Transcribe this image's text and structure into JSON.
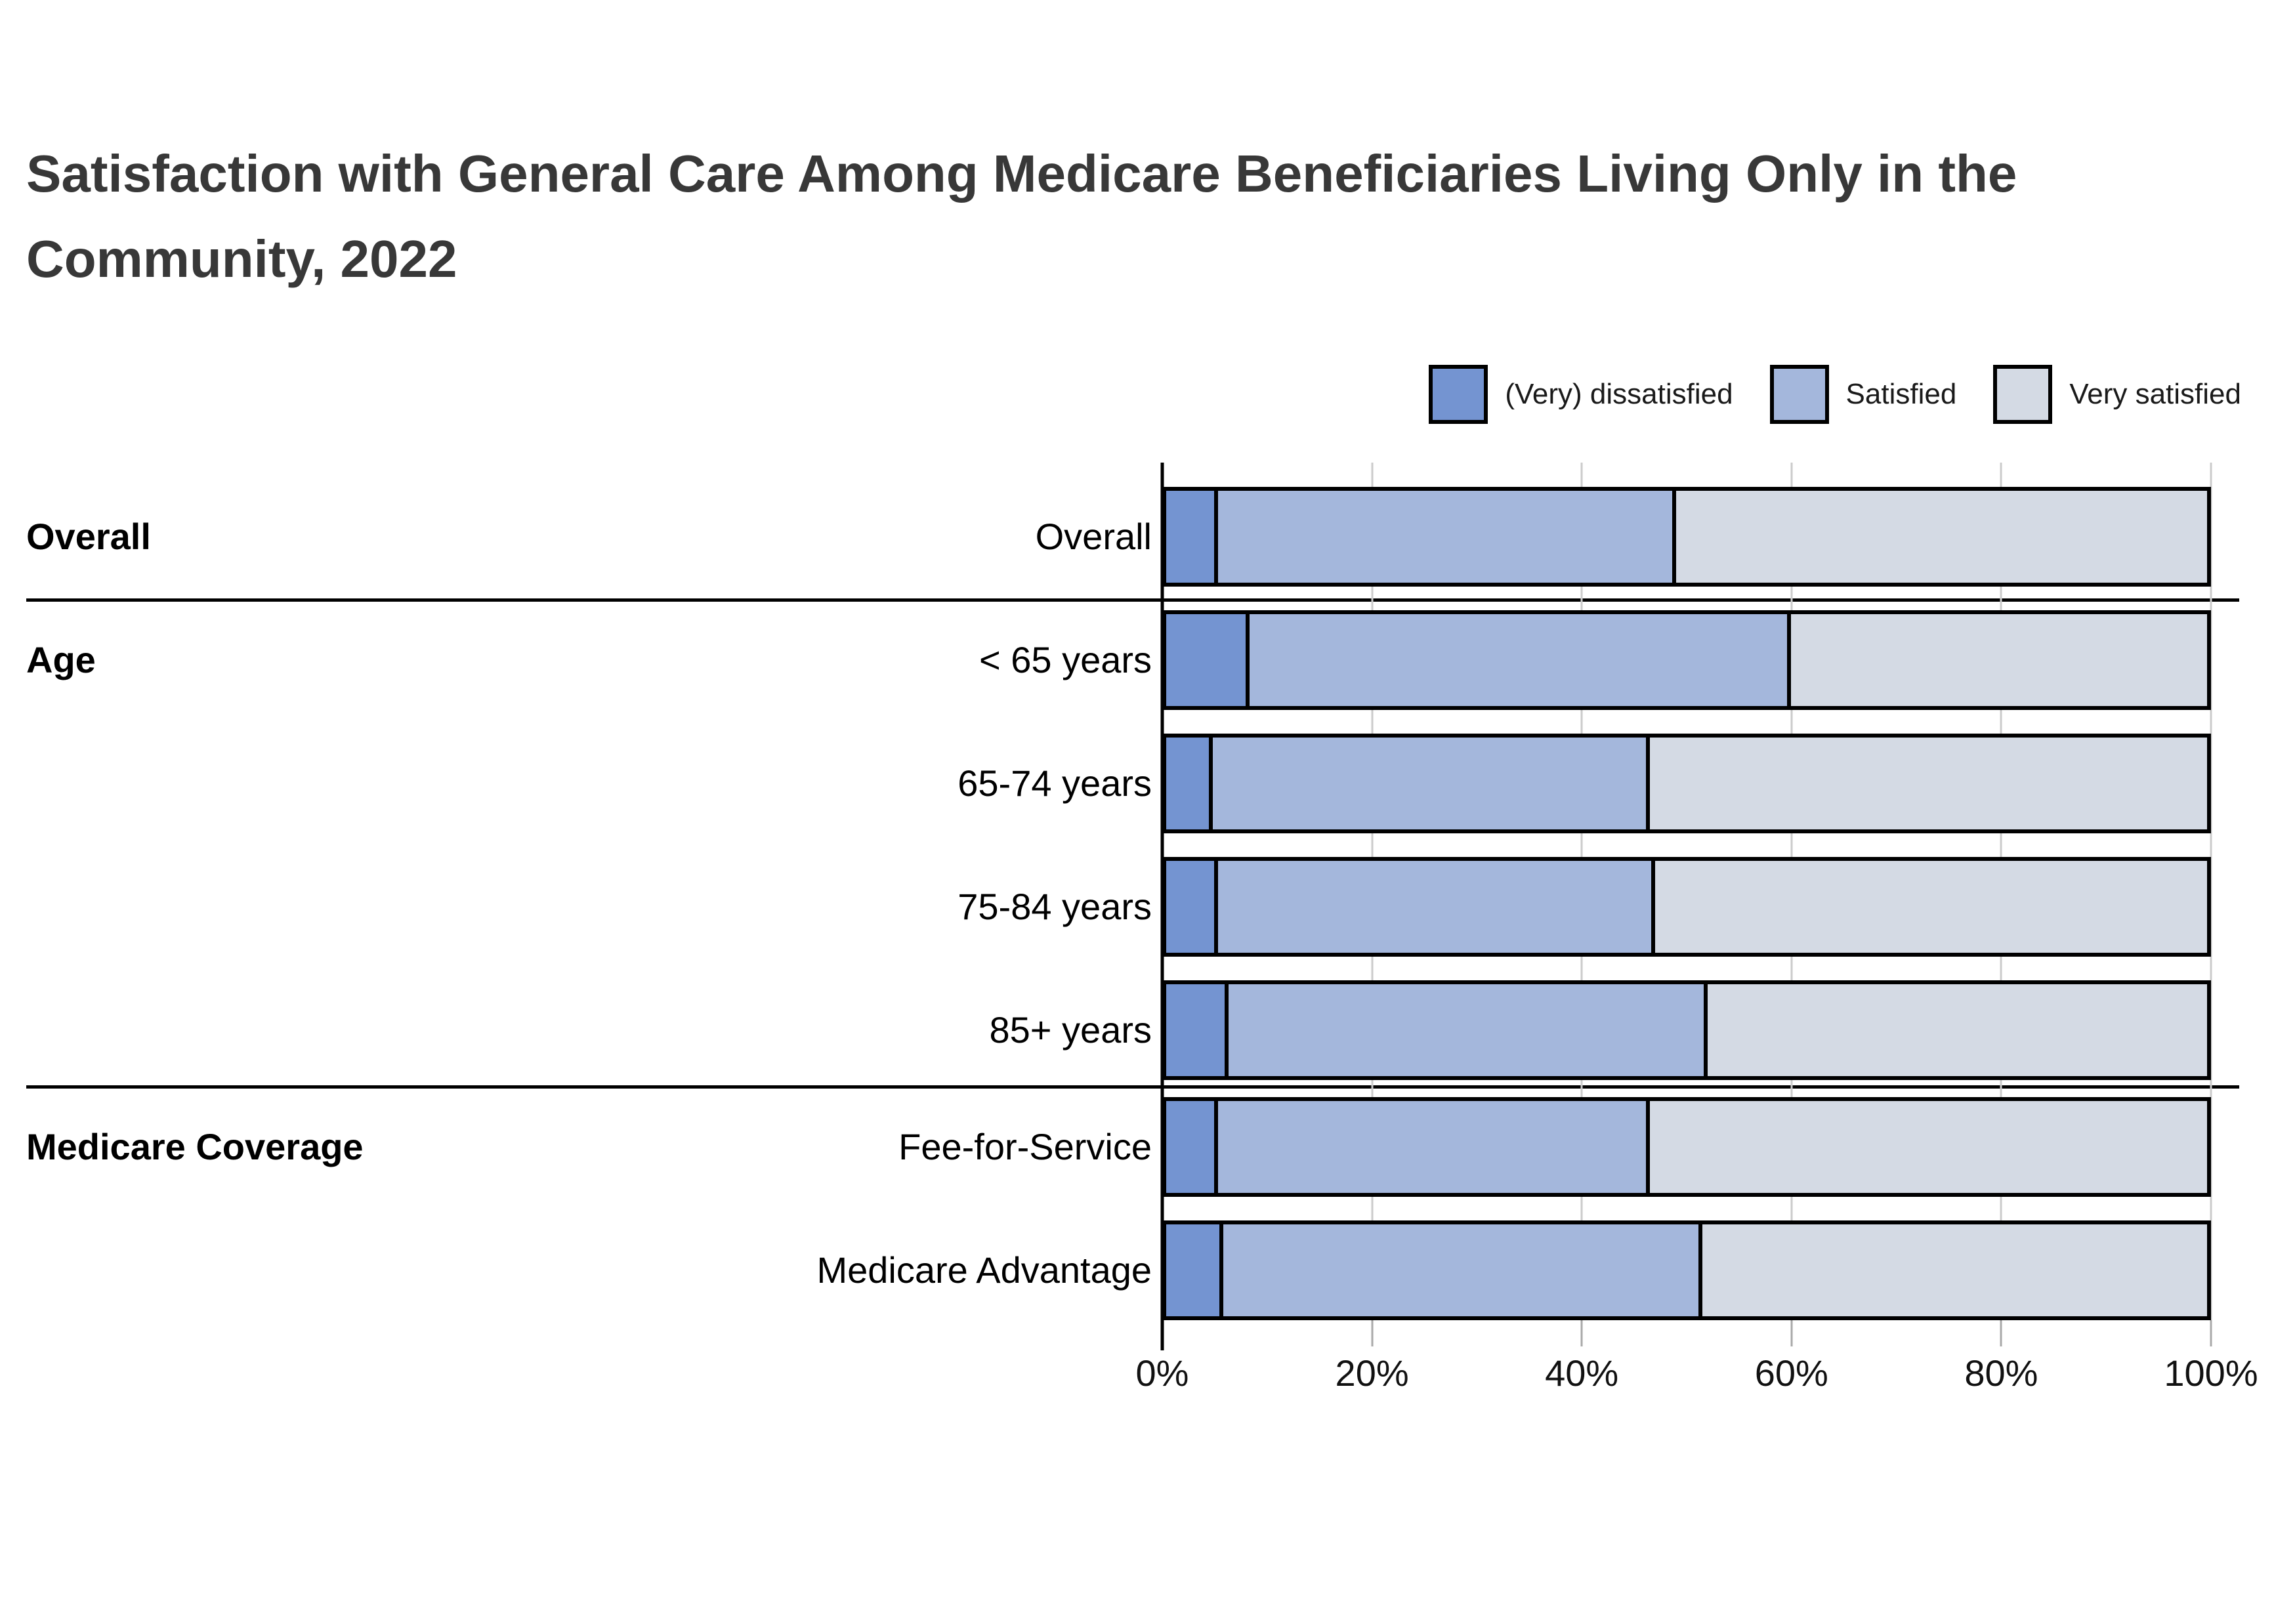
{
  "chart_data": {
    "type": "bar",
    "stacked": true,
    "orientation": "horizontal",
    "title": "Satisfaction with General Care Among Medicare Beneficiaries Living Only in the Community, 2022",
    "title_lines": [
      "Satisfaction with General Care Among Medicare Beneficiaries Living Only in the",
      "Community, 2022"
    ],
    "legend_position": "top-right",
    "series": [
      {
        "name": "(Very) dissatisfied",
        "color": "#7494d1"
      },
      {
        "name": "Satisfied",
        "color": "#a4b7dc"
      },
      {
        "name": "Very satisfied",
        "color": "#d4dae4"
      }
    ],
    "groups": [
      {
        "label": "Overall"
      },
      {
        "label": "Age"
      },
      {
        "label": "Medicare Coverage"
      }
    ],
    "rows": [
      {
        "label": "Overall",
        "group": "Overall",
        "values": [
          5,
          44,
          51
        ]
      },
      {
        "label": "< 65 years",
        "group": "Age",
        "values": [
          8,
          52,
          40
        ]
      },
      {
        "label": "65-74 years",
        "group": "Age",
        "values": [
          4.5,
          42,
          53.5
        ]
      },
      {
        "label": "75-84 years",
        "group": "Age",
        "values": [
          5,
          42,
          53
        ]
      },
      {
        "label": "85+ years",
        "group": "Age",
        "values": [
          6,
          46,
          48
        ]
      },
      {
        "label": "Fee-for-Service",
        "group": "Medicare Coverage",
        "values": [
          5,
          41.5,
          53.5
        ]
      },
      {
        "label": "Medicare Advantage",
        "group": "Medicare Coverage",
        "values": [
          5.5,
          46,
          48.5
        ]
      }
    ],
    "x_ticks": [
      "0%",
      "20%",
      "40%",
      "60%",
      "80%",
      "100%"
    ],
    "x_tick_values": [
      0,
      20,
      40,
      60,
      80,
      100
    ],
    "xlim": [
      0,
      100
    ],
    "grid": "vertical",
    "colors": {
      "bar_border": "#000000",
      "gridline": "#cbcbcb",
      "axis": "#000000",
      "tick": "#a9a9a9",
      "title_text": "#383838",
      "label_text": "#000000",
      "background": "#ffffff"
    }
  }
}
